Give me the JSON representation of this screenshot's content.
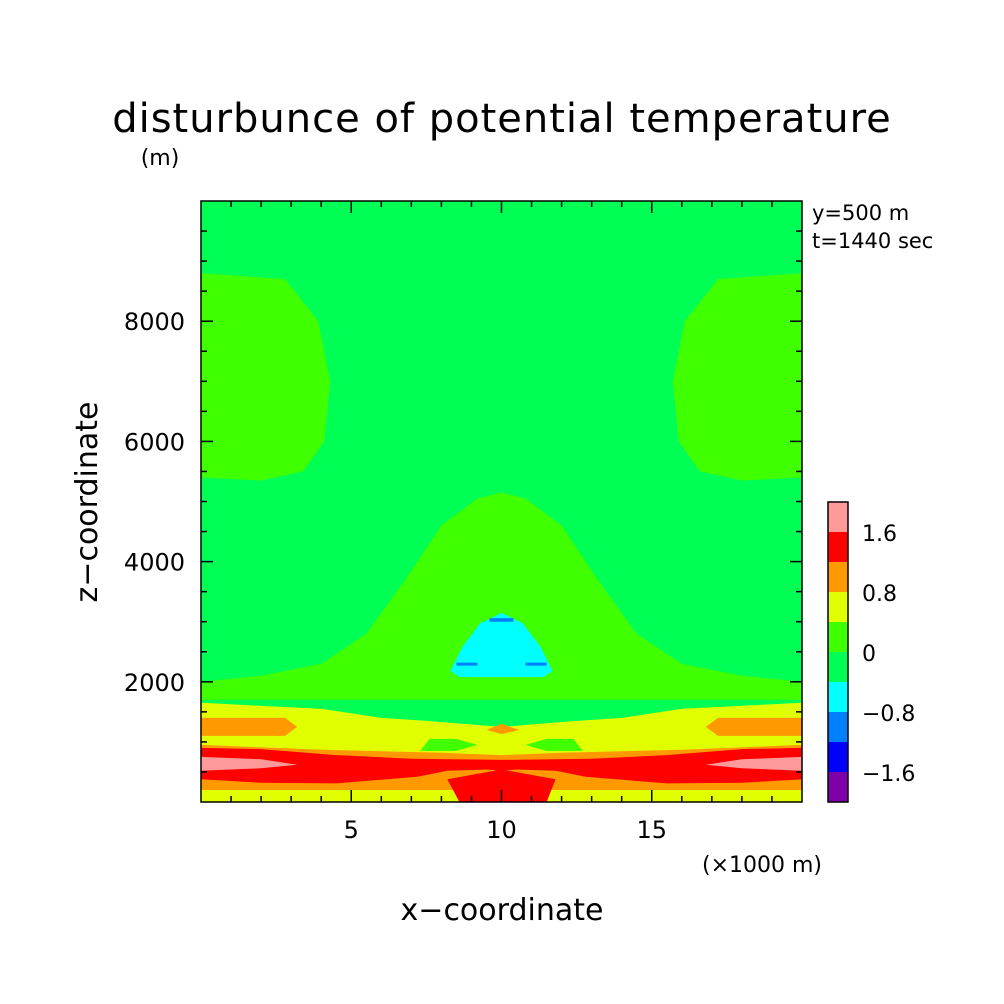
{
  "chart_data": {
    "type": "heatmap",
    "title": "disturbunce of potential temperature",
    "unit_label": "(m)",
    "xlabel": "x−coordinate",
    "ylabel": "z−coordinate",
    "x_unit_note": "(×1000 m)",
    "annotations": [
      "y=500 m",
      "t=1440 sec"
    ],
    "xlim": [
      0,
      20
    ],
    "ylim": [
      0,
      10000
    ],
    "x_ticks": [
      {
        "value": 5,
        "label": "5"
      },
      {
        "value": 10,
        "label": "10"
      },
      {
        "value": 15,
        "label": "15"
      }
    ],
    "y_ticks": [
      {
        "value": 2000,
        "label": "2000"
      },
      {
        "value": 4000,
        "label": "4000"
      },
      {
        "value": 6000,
        "label": "6000"
      },
      {
        "value": 8000,
        "label": "8000"
      }
    ],
    "colorbar": {
      "levels": [
        -2.0,
        -1.6,
        -1.2,
        -0.8,
        -0.4,
        0,
        0.4,
        0.8,
        1.2,
        1.6,
        2.0
      ],
      "colors": [
        "#7f00a8",
        "#0000ff",
        "#0080ff",
        "#00ffff",
        "#00ff55",
        "#40ff00",
        "#e0ff00",
        "#ff9900",
        "#ff0000",
        "#ff9a9a"
      ],
      "tick_labels": [
        {
          "value": -1.6,
          "label": "−1.6"
        },
        {
          "value": -0.8,
          "label": "−0.8"
        },
        {
          "value": 0,
          "label": "0"
        },
        {
          "value": 0.8,
          "label": "0.8"
        },
        {
          "value": 1.6,
          "label": "1.6"
        }
      ]
    },
    "regions": [
      {
        "name": "background-neutral",
        "level_index": 4,
        "points": [
          [
            0,
            0
          ],
          [
            20,
            0
          ],
          [
            20,
            10000
          ],
          [
            0,
            10000
          ]
        ]
      },
      {
        "name": "upper-left-lobe",
        "level_index": 5,
        "points": [
          [
            0,
            8800
          ],
          [
            2.8,
            8700
          ],
          [
            3.9,
            8000
          ],
          [
            4.3,
            7000
          ],
          [
            4.1,
            6000
          ],
          [
            3.4,
            5500
          ],
          [
            2,
            5350
          ],
          [
            0,
            5400
          ]
        ]
      },
      {
        "name": "upper-right-lobe",
        "level_index": 5,
        "points": [
          [
            20,
            8800
          ],
          [
            17.2,
            8700
          ],
          [
            16.1,
            8000
          ],
          [
            15.7,
            7000
          ],
          [
            15.9,
            6000
          ],
          [
            16.6,
            5500
          ],
          [
            18,
            5350
          ],
          [
            20,
            5400
          ]
        ]
      },
      {
        "name": "central-dome",
        "level_index": 5,
        "points": [
          [
            0,
            2000
          ],
          [
            2,
            2100
          ],
          [
            4,
            2300
          ],
          [
            5.5,
            2800
          ],
          [
            6.8,
            3700
          ],
          [
            8,
            4600
          ],
          [
            9.2,
            5050
          ],
          [
            10,
            5150
          ],
          [
            10.8,
            5050
          ],
          [
            12,
            4600
          ],
          [
            13.2,
            3700
          ],
          [
            14.5,
            2800
          ],
          [
            16,
            2300
          ],
          [
            18,
            2100
          ],
          [
            20,
            2000
          ],
          [
            20,
            1700
          ],
          [
            0,
            1700
          ]
        ]
      },
      {
        "name": "cold-core-outer",
        "level_index": 3,
        "points": [
          [
            8.7,
            2100
          ],
          [
            8.6,
            2300
          ],
          [
            9,
            2700
          ],
          [
            9.6,
            3050
          ],
          [
            10,
            3150
          ],
          [
            10.4,
            3050
          ],
          [
            11,
            2700
          ],
          [
            11.4,
            2300
          ],
          [
            11.3,
            2100
          ]
        ]
      },
      {
        "name": "cold-core-inner",
        "level_index": 3,
        "points": [
          [
            8.3,
            2180
          ],
          [
            8.7,
            2580
          ],
          [
            9.3,
            2980
          ],
          [
            10,
            3130
          ],
          [
            10.7,
            2980
          ],
          [
            11.3,
            2580
          ],
          [
            11.7,
            2180
          ],
          [
            11.4,
            2080
          ],
          [
            8.6,
            2080
          ]
        ]
      },
      {
        "name": "cold-spot-top",
        "level_index": 2,
        "points": [
          [
            9.6,
            3000
          ],
          [
            10.4,
            3000
          ],
          [
            10.4,
            3060
          ],
          [
            9.6,
            3060
          ]
        ]
      },
      {
        "name": "cold-spot-left",
        "level_index": 2,
        "points": [
          [
            8.5,
            2270
          ],
          [
            9.2,
            2270
          ],
          [
            9.2,
            2320
          ],
          [
            8.5,
            2320
          ]
        ]
      },
      {
        "name": "cold-spot-right",
        "level_index": 2,
        "points": [
          [
            10.8,
            2270
          ],
          [
            11.5,
            2270
          ],
          [
            11.5,
            2320
          ],
          [
            10.8,
            2320
          ]
        ]
      },
      {
        "name": "lower-warm-band",
        "level_index": 6,
        "points": [
          [
            0,
            0
          ],
          [
            20,
            0
          ],
          [
            20,
            1650
          ],
          [
            16,
            1550
          ],
          [
            14,
            1400
          ],
          [
            12.5,
            1350
          ],
          [
            10,
            1250
          ],
          [
            7.5,
            1350
          ],
          [
            6,
            1400
          ],
          [
            4,
            1550
          ],
          [
            0,
            1650
          ]
        ]
      },
      {
        "name": "lower-mid-left",
        "level_index": 5,
        "points": [
          [
            7.3,
            850
          ],
          [
            8.5,
            850
          ],
          [
            9.2,
            950
          ],
          [
            8.5,
            1050
          ],
          [
            7.6,
            1050
          ]
        ]
      },
      {
        "name": "lower-mid-right",
        "level_index": 5,
        "points": [
          [
            10.8,
            950
          ],
          [
            11.5,
            850
          ],
          [
            12.7,
            850
          ],
          [
            12.4,
            1050
          ],
          [
            11.5,
            1050
          ]
        ]
      },
      {
        "name": "orange-band-left",
        "level_index": 7,
        "points": [
          [
            0,
            1100
          ],
          [
            2.8,
            1100
          ],
          [
            3.2,
            1250
          ],
          [
            2.8,
            1400
          ],
          [
            0,
            1400
          ]
        ]
      },
      {
        "name": "orange-band-right",
        "level_index": 7,
        "points": [
          [
            20,
            1100
          ],
          [
            17.2,
            1100
          ],
          [
            16.8,
            1250
          ],
          [
            17.2,
            1400
          ],
          [
            20,
            1400
          ]
        ]
      },
      {
        "name": "orange-spot-center",
        "level_index": 7,
        "points": [
          [
            9.5,
            1200
          ],
          [
            10,
            1130
          ],
          [
            10.6,
            1200
          ],
          [
            10,
            1300
          ]
        ]
      },
      {
        "name": "orange-lower-band",
        "level_index": 7,
        "points": [
          [
            0,
            200
          ],
          [
            20,
            200
          ],
          [
            20,
            950
          ],
          [
            16,
            870
          ],
          [
            12,
            820
          ],
          [
            10,
            780
          ],
          [
            8,
            820
          ],
          [
            4,
            870
          ],
          [
            0,
            950
          ]
        ]
      },
      {
        "name": "red-core-band",
        "level_index": 8,
        "points": [
          [
            0,
            380
          ],
          [
            2,
            320
          ],
          [
            4.5,
            310
          ],
          [
            7.2,
            420
          ],
          [
            8.2,
            520
          ],
          [
            9.5,
            540
          ],
          [
            10,
            520
          ],
          [
            10.5,
            540
          ],
          [
            11.8,
            520
          ],
          [
            12.8,
            420
          ],
          [
            15.5,
            310
          ],
          [
            18,
            320
          ],
          [
            20,
            380
          ],
          [
            20,
            900
          ],
          [
            18,
            880
          ],
          [
            15.5,
            780
          ],
          [
            13,
            720
          ],
          [
            10,
            700
          ],
          [
            7,
            720
          ],
          [
            4.5,
            780
          ],
          [
            2,
            880
          ],
          [
            0,
            900
          ]
        ]
      },
      {
        "name": "red-column",
        "level_index": 8,
        "points": [
          [
            8.6,
            0
          ],
          [
            11.5,
            0
          ],
          [
            11.8,
            380
          ],
          [
            10,
            540
          ],
          [
            8.2,
            380
          ]
        ]
      },
      {
        "name": "pink-left",
        "level_index": 9,
        "points": [
          [
            0,
            520
          ],
          [
            2,
            560
          ],
          [
            3.2,
            620
          ],
          [
            2,
            710
          ],
          [
            0,
            750
          ]
        ]
      },
      {
        "name": "pink-right",
        "level_index": 9,
        "points": [
          [
            20,
            520
          ],
          [
            18,
            560
          ],
          [
            16.8,
            620
          ],
          [
            18,
            710
          ],
          [
            20,
            750
          ]
        ]
      }
    ]
  }
}
